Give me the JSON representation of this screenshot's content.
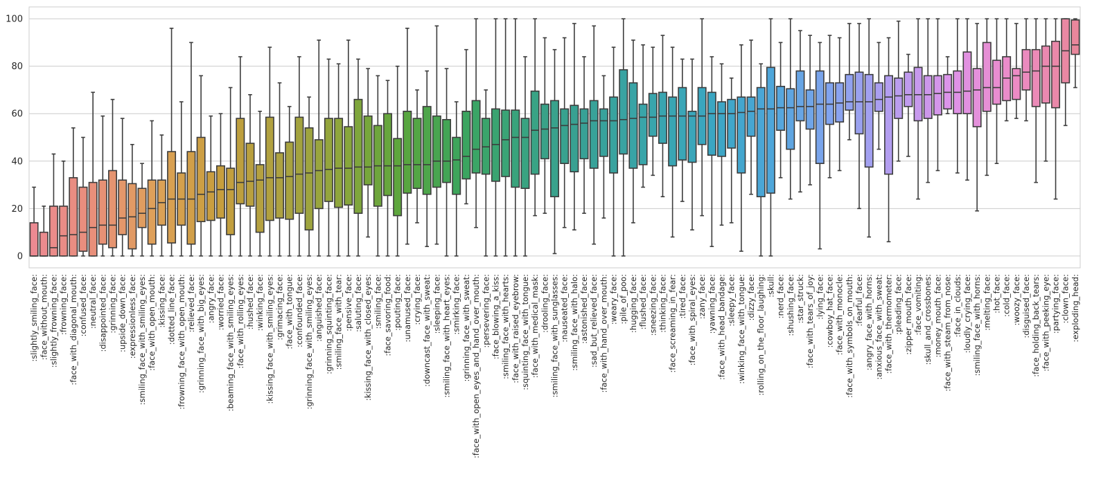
{
  "chart_data": {
    "type": "box",
    "title": "",
    "xlabel": "",
    "ylabel": "",
    "ylim": [
      -5,
      105
    ],
    "yticks": [
      0,
      20,
      40,
      60,
      80,
      100
    ],
    "grid": true,
    "legend": "none",
    "categories": [
      ":slightly_smiling_face:",
      ":face_without_mouth:",
      ":slightly_frowning_face:",
      ":frowning_face:",
      ":face_with_diagonal_mouth:",
      ":confused_face:",
      ":neutral_face:",
      ":disappointed_face:",
      ":grinning_face:",
      ":upside_down_face:",
      ":expressionless_face:",
      ":smiling_face_with_smiling_eyes:",
      ":face_with_open_mouth:",
      ":kissing_face:",
      ":dotted_line_face:",
      ":frowning_face_with_open_mouth:",
      ":relieved_face:",
      ":grinning_face_with_big_eyes:",
      ":angry_face:",
      ":worried_face:",
      ":beaming_face_with_smiling_eyes:",
      ":face_with_rolling_eyes:",
      ":hushed_face:",
      ":winking_face:",
      ":kissing_face_with_smiling_eyes:",
      ":grimacing_face:",
      ":face_with_tongue:",
      ":confounded_face:",
      ":grinning_face_with_smiling_eyes:",
      ":anguished_face:",
      ":grinning_squinting_face:",
      ":smiling_face_with_tear:",
      ":pensive_face:",
      ":saluting_face:",
      ":kissing_face_with_closed_eyes:",
      ":smiling_face:",
      ":face_savoring_food:",
      ":pouting_face:",
      ":unamused_face:",
      ":crying_face:",
      ":downcast_face_with_sweat:",
      ":sleeping_face:",
      ":smiling_face_with_heart_eyes:",
      ":smirking_face:",
      ":grinning_face_with_sweat:",
      ":face_with_open_eyes_and_hand_over_mouth:",
      ":persevering_face:",
      ":face_blowing_a_kiss:",
      ":smiling_face_with_hearts:",
      ":face_with_raised_eyebrow:",
      ":squinting_face_with_tongue:",
      ":face_with_medical_mask:",
      ":drooling_face:",
      ":smiling_face_with_sunglasses:",
      ":nauseated_face:",
      ":smiling_face_with_halo:",
      ":astonished_face:",
      ":sad_but_relieved_face:",
      ":face_with_hand_over_mouth:",
      ":weary_face:",
      ":pile_of_poo:",
      ":hugging_face:",
      ":flushed_face:",
      ":sneezing_face:",
      ":thinking_face:",
      ":face_screaming_in_fear:",
      ":tired_face:",
      ":face_with_spiral_eyes:",
      ":zany_face:",
      ":yawning_face:",
      ":face_with_head_bandage:",
      ":sleepy_face:",
      ":winking_face_with_tongue:",
      ":dizzy_face:",
      ":rolling_on_the_floor_laughing:",
      ":skull:",
      ":nerd_face:",
      ":shushing_face:",
      ":star_struck:",
      ":face_with_tears_of_joy:",
      ":lying_face:",
      ":cowboy_hat_face:",
      ":face_with_monocle:",
      ":face_with_symbols_on_mouth:",
      ":fearful_face:",
      ":angry_face_with_horns:",
      ":anxious_face_with_sweat:",
      ":face_with_thermometer:",
      ":pleading_face:",
      ":zipper_mouth_face:",
      ":face_vomiting:",
      ":skull_and_crossbones:",
      ":money_mouth_face:",
      ":face_with_steam_from_nose:",
      ":face_in_clouds:",
      ":loudly_crying_face:",
      ":smiling_face_with_horns:",
      ":melting_face:",
      ":hot_face:",
      ":cold_face:",
      ":woozy_face:",
      ":disguised_face:",
      ":face_holding_back_tears:",
      ":face_with_peeking_eye:",
      ":partying_face:",
      ":clown_face:",
      ":exploding_head:"
    ],
    "boxes": [
      [
        0,
        0,
        0,
        14,
        29
      ],
      [
        0,
        0,
        0,
        10,
        21
      ],
      [
        0,
        0,
        3.5,
        21,
        43
      ],
      [
        0,
        0,
        8.5,
        21,
        40
      ],
      [
        0,
        0,
        9,
        33,
        54
      ],
      [
        0,
        2,
        10,
        29,
        50
      ],
      [
        0,
        0,
        12,
        31,
        69
      ],
      [
        0,
        5,
        13,
        32,
        59
      ],
      [
        0,
        3.5,
        13,
        36,
        66
      ],
      [
        0,
        9,
        16,
        32,
        58
      ],
      [
        0,
        3,
        16.5,
        30.5,
        47
      ],
      [
        0,
        12,
        18,
        28.5,
        39
      ],
      [
        0,
        5,
        20,
        32,
        57
      ],
      [
        0,
        13,
        22.5,
        32,
        51
      ],
      [
        0,
        5.5,
        24,
        44,
        96
      ],
      [
        0,
        13,
        24,
        35,
        65
      ],
      [
        0,
        5,
        24,
        44,
        90
      ],
      [
        0,
        14.5,
        26,
        50,
        76
      ],
      [
        0,
        15,
        27,
        35.5,
        59
      ],
      [
        0,
        16,
        28,
        38,
        60
      ],
      [
        0,
        9,
        28,
        37,
        71
      ],
      [
        0,
        22,
        31,
        58,
        84
      ],
      [
        0,
        21,
        31.5,
        47.5,
        68
      ],
      [
        0,
        10,
        32,
        38.5,
        61
      ],
      [
        0,
        15,
        33,
        58.5,
        88
      ],
      [
        0,
        16,
        33,
        43.5,
        73
      ],
      [
        0,
        15.5,
        33.5,
        48,
        63
      ],
      [
        0,
        18,
        34.5,
        58.5,
        84
      ],
      [
        0,
        11,
        35,
        54,
        67
      ],
      [
        0,
        20,
        36,
        49,
        91
      ],
      [
        0,
        23,
        36.5,
        58,
        83
      ],
      [
        0,
        20.5,
        37,
        58,
        81
      ],
      [
        0,
        21.5,
        37,
        54.5,
        91
      ],
      [
        0,
        18,
        37.5,
        66,
        83
      ],
      [
        8,
        30,
        37.5,
        59,
        79
      ],
      [
        0,
        21,
        38,
        55,
        76
      ],
      [
        0,
        25.5,
        38,
        60,
        74
      ],
      [
        0,
        17,
        38,
        49.5,
        80
      ],
      [
        5,
        26.5,
        38.5,
        61,
        96
      ],
      [
        14,
        28.5,
        38.5,
        58,
        70
      ],
      [
        4,
        26,
        38.5,
        63,
        78
      ],
      [
        5,
        29,
        40,
        59,
        97
      ],
      [
        0,
        31,
        40,
        57.5,
        79
      ],
      [
        0,
        26,
        40.5,
        50,
        65
      ],
      [
        22,
        32.5,
        42,
        61,
        87
      ],
      [
        12,
        35,
        45,
        65.5,
        100
      ],
      [
        0,
        34.5,
        46,
        58,
        70
      ],
      [
        0,
        31.5,
        47,
        62,
        100
      ],
      [
        0,
        33.5,
        49,
        61.5,
        100
      ],
      [
        0,
        29,
        50,
        61.5,
        100
      ],
      [
        0,
        28.5,
        50,
        58,
        84
      ],
      [
        17,
        34.5,
        53,
        69.5,
        100
      ],
      [
        18,
        41,
        53.5,
        64,
        92
      ],
      [
        1,
        25,
        54,
        65.5,
        87
      ],
      [
        12,
        39,
        55,
        62,
        92
      ],
      [
        11,
        35.5,
        55.5,
        63.5,
        98
      ],
      [
        18,
        41,
        56,
        62,
        84
      ],
      [
        5,
        37,
        57,
        65.5,
        97
      ],
      [
        16,
        42,
        57,
        62,
        76
      ],
      [
        0,
        35,
        57,
        67,
        88
      ],
      [
        0,
        43,
        57.5,
        78.5,
        100
      ],
      [
        14,
        37,
        58,
        73,
        91
      ],
      [
        29,
        38.5,
        58.5,
        64,
        89
      ],
      [
        34,
        50.5,
        58.5,
        68.5,
        88
      ],
      [
        25,
        47.5,
        59,
        69,
        93
      ],
      [
        8,
        38,
        59,
        67,
        88
      ],
      [
        23,
        40.5,
        59,
        71,
        83
      ],
      [
        11,
        39.5,
        59,
        61,
        83
      ],
      [
        17,
        47,
        59,
        71,
        100
      ],
      [
        4,
        42.5,
        60,
        69,
        84
      ],
      [
        13,
        42,
        60,
        65,
        81
      ],
      [
        14,
        45.5,
        60,
        66,
        75
      ],
      [
        2,
        35,
        60.5,
        67,
        89
      ],
      [
        26,
        50.5,
        61,
        67,
        91
      ],
      [
        0,
        25,
        62,
        71,
        81
      ],
      [
        0,
        26.5,
        62,
        79.5,
        100
      ],
      [
        33,
        53,
        62.5,
        71.5,
        90
      ],
      [
        24,
        45,
        62.5,
        70.5,
        100
      ],
      [
        27,
        57,
        63,
        78,
        95
      ],
      [
        30,
        53.5,
        63,
        70,
        93
      ],
      [
        3,
        39,
        64,
        78,
        90
      ],
      [
        33,
        55.5,
        64,
        73,
        93
      ],
      [
        36,
        56.5,
        64.5,
        73,
        92
      ],
      [
        49,
        61.5,
        65,
        76.5,
        98
      ],
      [
        20,
        51.5,
        65,
        77.5,
        98
      ],
      [
        8,
        37.5,
        65,
        76.5,
        100
      ],
      [
        45,
        61,
        66,
        73,
        90
      ],
      [
        6,
        34.5,
        67,
        76,
        92
      ],
      [
        40,
        58,
        67.5,
        75,
        99
      ],
      [
        42,
        63,
        68,
        77.5,
        85
      ],
      [
        24,
        57,
        68,
        79.5,
        100
      ],
      [
        31,
        58,
        68,
        76,
        100
      ],
      [
        36,
        59.5,
        68.5,
        76,
        100
      ],
      [
        60,
        62,
        69,
        76.5,
        84
      ],
      [
        35,
        60,
        69,
        78,
        100
      ],
      [
        32,
        60,
        69.5,
        86,
        100
      ],
      [
        19,
        54.5,
        70,
        79,
        98
      ],
      [
        34,
        61,
        71,
        90,
        100
      ],
      [
        39,
        64,
        71,
        82.5,
        100
      ],
      [
        57,
        65.5,
        75,
        84,
        100
      ],
      [
        58,
        66,
        76,
        79,
        98
      ],
      [
        57,
        70,
        77.5,
        87,
        100
      ],
      [
        31,
        63,
        78,
        87,
        100
      ],
      [
        40,
        64.5,
        80,
        88.5,
        100
      ],
      [
        24,
        62.5,
        80,
        90.5,
        100
      ],
      [
        55,
        73,
        86.5,
        100,
        100
      ],
      [
        71,
        85,
        89,
        99.5,
        100
      ]
    ],
    "box_format": [
      "whisker_low",
      "q1",
      "median",
      "q3",
      "whisker_high"
    ],
    "palette": [
      "#ec8a92",
      "#e88f79",
      "#dda158",
      "#c79e3d",
      "#ada241",
      "#8ea63c",
      "#5ba63d",
      "#3ba55e",
      "#39a381",
      "#38a196",
      "#39a5aa",
      "#3aa6c0",
      "#4ca6d9",
      "#82a4ef",
      "#b59ef0",
      "#de93e8",
      "#ec8bc6",
      "#e9879c"
    ],
    "median_color": "#3c3c3c",
    "whisker_color": "#3c3c3c",
    "grid_color": "#cccccc"
  }
}
